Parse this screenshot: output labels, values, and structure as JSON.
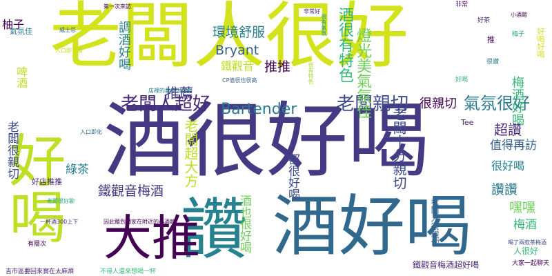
{
  "words": {
    "w01": "酒很好喝",
    "w02": "好喝",
    "w03": "老闆人很好",
    "w04": "酒好喝",
    "w05": "讚",
    "w06": "大推",
    "w07": "老闆人超好",
    "w08": "Bartender",
    "w09": "老闆親切",
    "w10": "氣氛很好",
    "w11": "很親切",
    "w12": "Bryant",
    "w13": "環境舒服",
    "w14": "推推",
    "w15": "鐵觀音",
    "w16": "酒很有特色",
    "w17": "燈光美氣氛佳",
    "w18": "調酒好喝",
    "w19": "推薦",
    "w20": "老闆超大方",
    "w21": "老闆十分親切",
    "w22": "超讚",
    "w23": "值得再訪",
    "w24": "很好喝",
    "w25": "讚讚",
    "w26": "嘿嘿",
    "w27": "梅酒",
    "w28": "鐵觀音梅酒",
    "w29": "綠茶",
    "w30": "好店推推",
    "w31": "酒也很好喝",
    "w32": "都很好喝",
    "w33": "老闆很親切",
    "w34": "柚子",
    "w35": "氣氛佳",
    "w36": "啤酒",
    "w37": "梅酒好喝",
    "w38": "鐵觀音梅酒超好喝",
    "w39": "老闆人很親切",
    "w40": "人很好",
    "w41": "Tee",
    "w42": "推",
    "w43": "好喝好喝",
    "w44": "店裡的氣氛很放鬆",
    "w45": "CP值很也很高",
    "w46": "非常好",
    "w47": "很有氣氛",
    "w48": "入口即化",
    "w49": "一杯酒300上下",
    "w50": "老闆很好聊",
    "w51": "因此藉到鐵家在附近的小酒館",
    "w52": "吉市區要回來實在太麻煩",
    "w53": "不得人還來想喝一杯",
    "w54": "有層次",
    "w55": "大家一起聊天",
    "w56": "喝了兩款茶梅酒",
    "w57": "很有特色",
    "w58": "非常",
    "w59": "好喝",
    "w60": "很讚",
    "w61": "梅子",
    "w62": "好茶",
    "w63": "第一次來訪",
    "w64": "威士忌",
    "w65": "小酒館",
    "w66": "入口即下滑"
  },
  "colors": {
    "yellow_green": "#bddf26",
    "lime": "#d2e21b",
    "dark_purple": "#440154",
    "indigo": "#482878",
    "blue": "#31688e",
    "slate": "#3e4989",
    "teal": "#26828e",
    "teal_dark": "#2a788e",
    "green": "#35b779",
    "green_light": "#6ece58",
    "green_bright": "#7ad151",
    "navy": "#443983",
    "steel": "#355f8d",
    "sea": "#1f988b",
    "cyan_green": "#22a884",
    "olive_yellow": "#a5db36"
  }
}
